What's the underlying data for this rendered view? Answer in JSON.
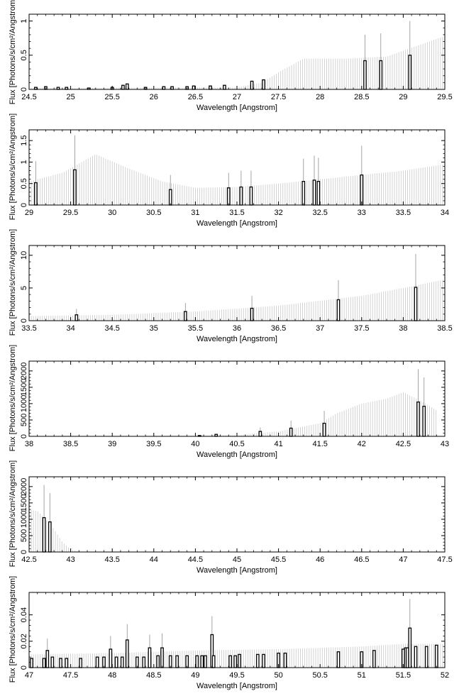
{
  "chart_data": [
    {
      "type": "bar",
      "xlabel": "Wavelength [Angstrom]",
      "ylabel": "Flux [Photons/s/cm²/Angstrom]",
      "xlim": [
        24.5,
        29.5
      ],
      "ylim": [
        0,
        1.1
      ],
      "xticks": [
        24.5,
        25,
        25.5,
        26,
        26.5,
        27,
        27.5,
        28,
        28.5,
        29,
        29.5
      ],
      "yticks": [
        0,
        0.5,
        1
      ],
      "error_envelope": [
        [
          24.5,
          0.02
        ],
        [
          27.0,
          0.03
        ],
        [
          27.3,
          0.1
        ],
        [
          27.5,
          0.25
        ],
        [
          27.8,
          0.45
        ],
        [
          28.3,
          0.45
        ],
        [
          28.8,
          0.48
        ],
        [
          29.5,
          0.78
        ]
      ],
      "bars": [
        {
          "x": 24.58,
          "y": 0.03
        },
        {
          "x": 24.7,
          "y": 0.04
        },
        {
          "x": 24.85,
          "y": 0.03
        },
        {
          "x": 24.95,
          "y": 0.03
        },
        {
          "x": 25.22,
          "y": 0.02
        },
        {
          "x": 25.5,
          "y": 0.03
        },
        {
          "x": 25.63,
          "y": 0.06
        },
        {
          "x": 25.68,
          "y": 0.08
        },
        {
          "x": 25.9,
          "y": 0.03
        },
        {
          "x": 26.12,
          "y": 0.04
        },
        {
          "x": 26.22,
          "y": 0.04
        },
        {
          "x": 26.4,
          "y": 0.04
        },
        {
          "x": 26.48,
          "y": 0.05
        },
        {
          "x": 26.68,
          "y": 0.05
        },
        {
          "x": 26.85,
          "y": 0.06
        },
        {
          "x": 27.18,
          "y": 0.12
        },
        {
          "x": 27.32,
          "y": 0.14
        },
        {
          "x": 28.54,
          "y": 0.42,
          "err": 0.8
        },
        {
          "x": 28.73,
          "y": 0.42,
          "err": 0.82
        },
        {
          "x": 29.08,
          "y": 0.5,
          "err": 1.0
        }
      ]
    },
    {
      "type": "bar",
      "xlabel": "Wavelength [Angstrom]",
      "ylabel": "Flux [Photons/s/cm²/Angstrom]",
      "xlim": [
        29,
        34
      ],
      "ylim": [
        0,
        1.75
      ],
      "xticks": [
        29,
        29.5,
        30,
        30.5,
        31,
        31.5,
        32,
        32.5,
        33,
        33.5,
        34
      ],
      "yticks": [
        0,
        0.5,
        1,
        1.5
      ],
      "error_envelope": [
        [
          29.0,
          0.55
        ],
        [
          29.4,
          0.75
        ],
        [
          29.8,
          1.18
        ],
        [
          30.2,
          0.85
        ],
        [
          30.6,
          0.55
        ],
        [
          31.0,
          0.4
        ],
        [
          31.5,
          0.42
        ],
        [
          32.0,
          0.5
        ],
        [
          32.5,
          0.6
        ],
        [
          33.0,
          0.7
        ],
        [
          33.5,
          0.8
        ],
        [
          34.0,
          0.95
        ]
      ],
      "bars": [
        {
          "x": 29.08,
          "y": 0.52,
          "err": 1.02
        },
        {
          "x": 29.55,
          "y": 0.82,
          "err": 1.62
        },
        {
          "x": 30.7,
          "y": 0.36,
          "err": 0.7
        },
        {
          "x": 31.4,
          "y": 0.4,
          "err": 0.75
        },
        {
          "x": 31.55,
          "y": 0.42,
          "err": 0.8
        },
        {
          "x": 31.67,
          "y": 0.42,
          "err": 0.8
        },
        {
          "x": 32.3,
          "y": 0.55,
          "err": 1.08
        },
        {
          "x": 32.43,
          "y": 0.58,
          "err": 1.15
        },
        {
          "x": 32.48,
          "y": 0.55,
          "err": 1.1
        },
        {
          "x": 33.0,
          "y": 0.7,
          "err": 1.38
        }
      ]
    },
    {
      "type": "bar",
      "xlabel": "Wavelength [Angstrom]",
      "ylabel": "Flux [Photons/s/cm²/Angstrom]",
      "xlim": [
        33.5,
        38.5
      ],
      "ylim": [
        0,
        11.5
      ],
      "xticks": [
        33.5,
        34,
        34.5,
        35,
        35.5,
        36,
        36.5,
        37,
        37.5,
        38,
        38.5
      ],
      "yticks": [
        0,
        5,
        10
      ],
      "error_envelope": [
        [
          33.5,
          0.7
        ],
        [
          34.5,
          0.9
        ],
        [
          35.5,
          1.4
        ],
        [
          36.5,
          2.3
        ],
        [
          37.5,
          3.8
        ],
        [
          38.0,
          5.0
        ],
        [
          38.5,
          6.3
        ]
      ],
      "bars": [
        {
          "x": 34.07,
          "y": 0.9,
          "err": 1.8
        },
        {
          "x": 35.38,
          "y": 1.4,
          "err": 2.7
        },
        {
          "x": 36.18,
          "y": 1.9,
          "err": 3.8
        },
        {
          "x": 37.22,
          "y": 3.2,
          "err": 6.2
        },
        {
          "x": 38.15,
          "y": 5.1,
          "err": 10.2
        }
      ]
    },
    {
      "type": "bar",
      "xlabel": "Wavelength [Angstrom]",
      "ylabel": "Flux [Photons/s/cm²/Angstrom]",
      "xlim": [
        38,
        43
      ],
      "ylim": [
        0,
        2300
      ],
      "xticks": [
        38,
        38.5,
        39,
        39.5,
        40,
        40.5,
        41,
        41.5,
        42,
        42.5,
        43
      ],
      "yticks": [
        0,
        500,
        1000,
        1500,
        2000
      ],
      "error_envelope": [
        [
          38.0,
          5
        ],
        [
          40.0,
          15
        ],
        [
          40.5,
          40
        ],
        [
          41.0,
          150
        ],
        [
          41.5,
          400
        ],
        [
          41.7,
          700
        ],
        [
          42.0,
          1000
        ],
        [
          42.3,
          1150
        ],
        [
          42.5,
          1350
        ],
        [
          42.7,
          1100
        ],
        [
          42.9,
          800
        ]
      ],
      "bars": [
        {
          "x": 40.05,
          "y": 25
        },
        {
          "x": 40.25,
          "y": 60
        },
        {
          "x": 40.78,
          "y": 150,
          "err": 270
        },
        {
          "x": 41.15,
          "y": 250,
          "err": 480
        },
        {
          "x": 41.55,
          "y": 400,
          "err": 780
        },
        {
          "x": 42.68,
          "y": 1050,
          "err": 2050
        },
        {
          "x": 42.75,
          "y": 920,
          "err": 1800
        }
      ]
    },
    {
      "type": "bar",
      "xlabel": "Wavelength [Angstrom]",
      "ylabel": "Flux [Photons/s/cm²/Angstrom]",
      "xlim": [
        42.5,
        47.5
      ],
      "ylim": [
        0,
        2300
      ],
      "xticks": [
        42.5,
        43,
        43.5,
        44,
        44.5,
        45,
        45.5,
        46,
        46.5,
        47,
        47.5
      ],
      "yticks": [
        0,
        500,
        1000,
        1500,
        2000
      ],
      "error_envelope": [
        [
          42.5,
          1300
        ],
        [
          42.6,
          1250
        ],
        [
          42.7,
          1000
        ],
        [
          42.8,
          700
        ],
        [
          42.9,
          300
        ],
        [
          43.0,
          80
        ],
        [
          43.1,
          10
        ]
      ],
      "bars": [
        {
          "x": 42.68,
          "y": 1050,
          "err": 2050
        },
        {
          "x": 42.75,
          "y": 920,
          "err": 1800
        }
      ]
    },
    {
      "type": "bar",
      "xlabel": "Wavelength [Angstrom]",
      "ylabel": "Flux [Photons/s/cm²/Angstrom]",
      "xlim": [
        47,
        52
      ],
      "ylim": [
        0,
        0.057
      ],
      "xticks": [
        47,
        47.5,
        48,
        48.5,
        49,
        49.5,
        50,
        50.5,
        51,
        51.5,
        52
      ],
      "yticks": [
        0,
        0.02,
        0.04
      ],
      "error_envelope": [
        [
          47.0,
          0.01
        ],
        [
          48.0,
          0.011
        ],
        [
          49.0,
          0.013
        ],
        [
          50.0,
          0.014
        ],
        [
          51.0,
          0.016
        ],
        [
          51.5,
          0.018
        ],
        [
          52.0,
          0.018
        ]
      ],
      "bars": [
        {
          "x": 47.03,
          "y": 0.007
        },
        {
          "x": 47.18,
          "y": 0.007
        },
        {
          "x": 47.22,
          "y": 0.013,
          "err": 0.022
        },
        {
          "x": 47.28,
          "y": 0.008
        },
        {
          "x": 47.38,
          "y": 0.007
        },
        {
          "x": 47.45,
          "y": 0.007
        },
        {
          "x": 47.62,
          "y": 0.007
        },
        {
          "x": 47.82,
          "y": 0.008
        },
        {
          "x": 47.9,
          "y": 0.008
        },
        {
          "x": 47.98,
          "y": 0.014,
          "err": 0.024
        },
        {
          "x": 48.05,
          "y": 0.008
        },
        {
          "x": 48.12,
          "y": 0.008
        },
        {
          "x": 48.18,
          "y": 0.021,
          "err": 0.033
        },
        {
          "x": 48.3,
          "y": 0.008
        },
        {
          "x": 48.38,
          "y": 0.008
        },
        {
          "x": 48.45,
          "y": 0.015,
          "err": 0.025
        },
        {
          "x": 48.55,
          "y": 0.009
        },
        {
          "x": 48.6,
          "y": 0.015,
          "err": 0.026
        },
        {
          "x": 48.7,
          "y": 0.009
        },
        {
          "x": 48.78,
          "y": 0.009
        },
        {
          "x": 48.9,
          "y": 0.009
        },
        {
          "x": 49.02,
          "y": 0.009
        },
        {
          "x": 49.08,
          "y": 0.009
        },
        {
          "x": 49.12,
          "y": 0.009
        },
        {
          "x": 49.2,
          "y": 0.025,
          "err": 0.039
        },
        {
          "x": 49.22,
          "y": 0.009
        },
        {
          "x": 49.42,
          "y": 0.009
        },
        {
          "x": 49.48,
          "y": 0.009
        },
        {
          "x": 49.53,
          "y": 0.01
        },
        {
          "x": 49.75,
          "y": 0.01
        },
        {
          "x": 49.82,
          "y": 0.01
        },
        {
          "x": 50.0,
          "y": 0.011
        },
        {
          "x": 50.08,
          "y": 0.011
        },
        {
          "x": 50.72,
          "y": 0.012
        },
        {
          "x": 51.0,
          "y": 0.012
        },
        {
          "x": 51.15,
          "y": 0.013
        },
        {
          "x": 51.5,
          "y": 0.014
        },
        {
          "x": 51.53,
          "y": 0.015
        },
        {
          "x": 51.55,
          "y": 0.015
        },
        {
          "x": 51.58,
          "y": 0.03,
          "err": 0.052
        },
        {
          "x": 51.65,
          "y": 0.016
        },
        {
          "x": 51.78,
          "y": 0.016
        },
        {
          "x": 51.9,
          "y": 0.017
        }
      ]
    }
  ]
}
